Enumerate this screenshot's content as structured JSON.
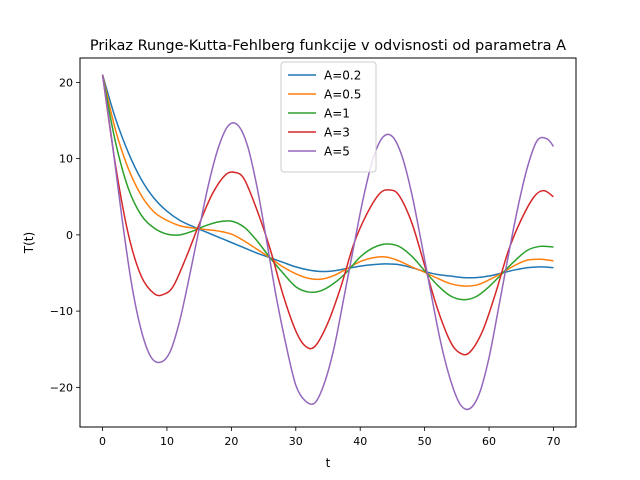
{
  "chart_data": {
    "type": "line",
    "title": "Prikaz Runge-Kutta-Fehlberg funkcije v odvisnosti od parametra A",
    "xlabel": "t",
    "ylabel": "T(t)",
    "xlim": [
      -3.5,
      73.5
    ],
    "ylim": [
      -25.2,
      23.2
    ],
    "xticks": [
      0,
      10,
      20,
      30,
      40,
      50,
      60,
      70
    ],
    "yticks": [
      -20,
      -10,
      0,
      10,
      20
    ],
    "ytick_labels": [
      "−20",
      "−10",
      "0",
      "10",
      "20"
    ],
    "grid": false,
    "legend_position": "top-center",
    "series": [
      {
        "name": "A=0.2",
        "color": "#1f77b4",
        "x": [
          0,
          2,
          4,
          6,
          8,
          10,
          12,
          14,
          16,
          18,
          20,
          22,
          24,
          26,
          28,
          30,
          32,
          34,
          36,
          38,
          40,
          42,
          44,
          46,
          48,
          50,
          52,
          54,
          56,
          58,
          60,
          62,
          64,
          66,
          68,
          70
        ],
        "y": [
          21.0,
          15.3,
          10.8,
          7.3,
          4.8,
          3.1,
          1.9,
          1.1,
          0.4,
          -0.3,
          -1.0,
          -1.7,
          -2.4,
          -3.0,
          -3.6,
          -4.2,
          -4.6,
          -4.8,
          -4.7,
          -4.4,
          -4.1,
          -3.9,
          -3.8,
          -3.9,
          -4.3,
          -4.8,
          -5.2,
          -5.4,
          -5.6,
          -5.6,
          -5.4,
          -5.0,
          -4.6,
          -4.3,
          -4.2,
          -4.3
        ]
      },
      {
        "name": "A=0.5",
        "color": "#ff7f0e",
        "x": [
          0,
          2,
          4,
          6,
          8,
          10,
          12,
          14,
          16,
          18,
          20,
          22,
          24,
          26,
          28,
          30,
          32,
          34,
          36,
          38,
          40,
          42,
          44,
          46,
          48,
          50,
          52,
          54,
          56,
          58,
          60,
          62,
          64,
          66,
          68,
          70
        ],
        "y": [
          21.0,
          13.8,
          8.7,
          5.2,
          3.0,
          1.9,
          1.2,
          0.9,
          0.7,
          0.5,
          0.1,
          -0.8,
          -1.9,
          -3.0,
          -4.2,
          -5.1,
          -5.7,
          -5.8,
          -5.3,
          -4.4,
          -3.5,
          -3.0,
          -2.9,
          -3.4,
          -4.2,
          -4.9,
          -5.7,
          -6.4,
          -6.7,
          -6.6,
          -5.9,
          -5.0,
          -4.0,
          -3.3,
          -3.2,
          -3.4
        ]
      },
      {
        "name": "A=1",
        "color": "#2ca02c",
        "x": [
          0,
          2,
          4,
          6,
          8,
          10,
          12,
          14,
          16,
          18,
          20,
          22,
          24,
          26,
          28,
          30,
          32,
          34,
          36,
          38,
          40,
          42,
          44,
          46,
          48,
          50,
          52,
          54,
          56,
          58,
          60,
          62,
          64,
          66,
          68,
          70
        ],
        "y": [
          21.0,
          12.2,
          6.1,
          2.6,
          0.9,
          0.1,
          0.0,
          0.5,
          1.2,
          1.7,
          1.8,
          1.0,
          -0.8,
          -3.0,
          -5.0,
          -6.8,
          -7.5,
          -7.3,
          -6.3,
          -4.8,
          -2.9,
          -1.7,
          -1.2,
          -1.5,
          -2.8,
          -4.7,
          -6.6,
          -8.0,
          -8.5,
          -8.1,
          -6.8,
          -5.1,
          -3.4,
          -2.0,
          -1.5,
          -1.6
        ]
      },
      {
        "name": "A=3",
        "color": "#d62728",
        "x": [
          0,
          2,
          4,
          6,
          8,
          9.5,
          11,
          13,
          15,
          17,
          19,
          20.5,
          22,
          24,
          26,
          28,
          30,
          31.5,
          33,
          35,
          37,
          39,
          41,
          43,
          44.5,
          46,
          48,
          50,
          52,
          54,
          55.5,
          57,
          59,
          61,
          63,
          65,
          67,
          68.5,
          70
        ],
        "y": [
          21.0,
          9.2,
          0.1,
          -5.4,
          -7.7,
          -7.8,
          -6.7,
          -2.9,
          1.4,
          5.3,
          7.8,
          8.2,
          7.3,
          3.2,
          -1.8,
          -7.8,
          -12.6,
          -14.6,
          -14.6,
          -11.5,
          -6.8,
          -1.2,
          2.7,
          5.4,
          5.9,
          5.2,
          1.6,
          -4.0,
          -9.7,
          -14.0,
          -15.5,
          -15.4,
          -12.6,
          -7.7,
          -2.1,
          2.0,
          5.0,
          5.8,
          5.0
        ]
      },
      {
        "name": "A=5",
        "color": "#9467bd",
        "x": [
          0,
          1.5,
          3,
          4.5,
          6,
          7.5,
          9,
          10.5,
          12,
          13.5,
          15,
          16.5,
          18,
          19.5,
          21,
          22.5,
          24,
          25.5,
          27,
          28.5,
          30,
          31.5,
          33,
          34.5,
          36,
          37.5,
          39,
          40.5,
          42,
          43.5,
          45,
          46.5,
          48,
          49.5,
          51,
          52.5,
          54,
          55.5,
          57,
          58.5,
          60,
          61.5,
          63,
          64.5,
          66,
          67.5,
          69,
          70
        ],
        "y": [
          21.0,
          12.1,
          2.3,
          -6.4,
          -12.5,
          -16.0,
          -16.7,
          -15.3,
          -11.2,
          -5.4,
          0.8,
          6.8,
          11.5,
          14.3,
          14.4,
          11.7,
          6.2,
          -0.9,
          -8.3,
          -14.5,
          -19.7,
          -21.8,
          -22.0,
          -19.3,
          -14.6,
          -8.1,
          -1.5,
          4.9,
          10.0,
          12.8,
          12.9,
          10.3,
          5.4,
          -1.0,
          -7.7,
          -14.1,
          -19.0,
          -22.2,
          -22.8,
          -20.8,
          -16.1,
          -9.5,
          -2.7,
          3.7,
          9.0,
          12.4,
          12.6,
          11.6
        ]
      }
    ]
  }
}
